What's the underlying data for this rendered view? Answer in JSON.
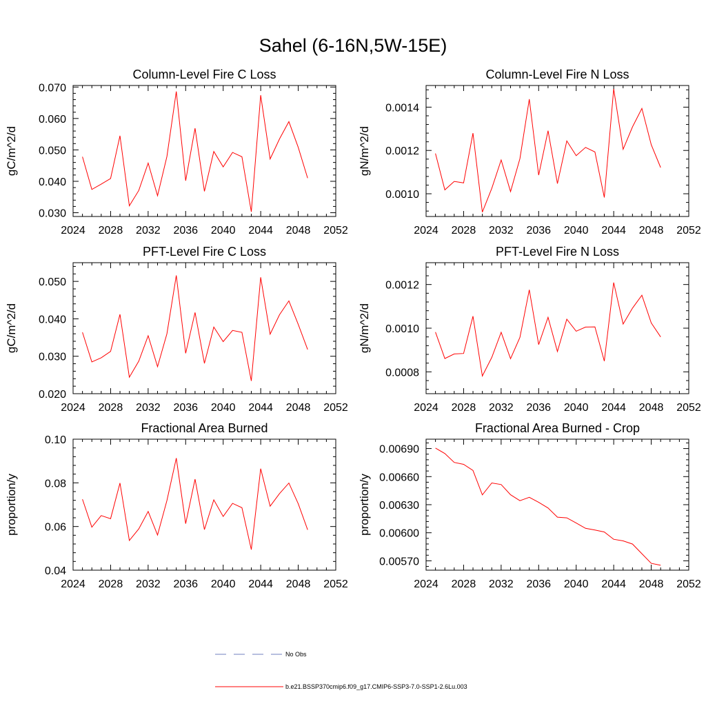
{
  "main_title": "Sahel (6-16N,5W-15E)",
  "series_color": "#ff0000",
  "obs_color": "#6f7fbf",
  "legend": {
    "obs_label": "No Obs",
    "model_label": "b.e21.BSSP370cmip6.f09_g17.CMIP6-SSP3-7.0-SSP1-2.6Lu.003"
  },
  "chart_data": [
    {
      "type": "line",
      "title": "Column-Level Fire C Loss",
      "ylabel": "gC/m^2/d",
      "xlim": [
        2024,
        2052
      ],
      "ylim": [
        0.0288,
        0.0705
      ],
      "xticks": [
        2024,
        2028,
        2032,
        2036,
        2040,
        2044,
        2048,
        2052
      ],
      "xtick_labels": [
        "2024",
        "2028",
        "2032",
        "2036",
        "2040",
        "2044",
        "2048",
        "2052"
      ],
      "yticks": [
        0.03,
        0.04,
        0.05,
        0.06,
        0.07
      ],
      "ytick_labels": [
        "0.030",
        "0.040",
        "0.050",
        "0.060",
        "0.070"
      ],
      "x": [
        2025,
        2026,
        2027,
        2028,
        2029,
        2030,
        2031,
        2032,
        2033,
        2034,
        2035,
        2036,
        2037,
        2038,
        2039,
        2040,
        2041,
        2042,
        2043,
        2044,
        2045,
        2046,
        2047,
        2048,
        2049
      ],
      "values": [
        0.0478,
        0.0374,
        0.0391,
        0.0409,
        0.0545,
        0.0322,
        0.0371,
        0.0458,
        0.0354,
        0.0479,
        0.0686,
        0.0402,
        0.0569,
        0.0368,
        0.0495,
        0.0446,
        0.0492,
        0.0478,
        0.0303,
        0.0674,
        0.0471,
        0.0535,
        0.059,
        0.0508,
        0.041
      ]
    },
    {
      "type": "line",
      "title": "Column-Level Fire N Loss",
      "ylabel": "gN/m^2/d",
      "xlim": [
        2024,
        2052
      ],
      "ylim": [
        0.000895,
        0.0015
      ],
      "xticks": [
        2024,
        2028,
        2032,
        2036,
        2040,
        2044,
        2048,
        2052
      ],
      "xtick_labels": [
        "2024",
        "2028",
        "2032",
        "2036",
        "2040",
        "2044",
        "2048",
        "2052"
      ],
      "yticks": [
        0.001,
        0.0012,
        0.0014
      ],
      "ytick_labels": [
        "0.0010",
        "0.0012",
        "0.0014"
      ],
      "x": [
        2025,
        2026,
        2027,
        2028,
        2029,
        2030,
        2031,
        2032,
        2033,
        2034,
        2035,
        2036,
        2037,
        2038,
        2039,
        2040,
        2041,
        2042,
        2043,
        2044,
        2045,
        2046,
        2047,
        2048,
        2049
      ],
      "values": [
        0.001186,
        0.001018,
        0.001057,
        0.00105,
        0.00128,
        0.000915,
        0.001025,
        0.001156,
        0.00101,
        0.001162,
        0.001437,
        0.001086,
        0.001291,
        0.001047,
        0.001244,
        0.001176,
        0.001214,
        0.001193,
        0.000983,
        0.001484,
        0.001205,
        0.001309,
        0.001394,
        0.001226,
        0.001121
      ]
    },
    {
      "type": "line",
      "title": "PFT-Level Fire C Loss",
      "ylabel": "gC/m^2/d",
      "xlim": [
        2024,
        2052
      ],
      "ylim": [
        0.02,
        0.055
      ],
      "xticks": [
        2024,
        2028,
        2032,
        2036,
        2040,
        2044,
        2048,
        2052
      ],
      "xtick_labels": [
        "2024",
        "2028",
        "2032",
        "2036",
        "2040",
        "2044",
        "2048",
        "2052"
      ],
      "yticks": [
        0.02,
        0.03,
        0.04,
        0.05
      ],
      "ytick_labels": [
        "0.020",
        "0.030",
        "0.040",
        "0.050"
      ],
      "x": [
        2025,
        2026,
        2027,
        2028,
        2029,
        2030,
        2031,
        2032,
        2033,
        2034,
        2035,
        2036,
        2037,
        2038,
        2039,
        2040,
        2041,
        2042,
        2043,
        2044,
        2045,
        2046,
        2047,
        2048,
        2049
      ],
      "values": [
        0.0364,
        0.0285,
        0.0296,
        0.0313,
        0.0412,
        0.0244,
        0.0287,
        0.0355,
        0.0272,
        0.036,
        0.0516,
        0.0308,
        0.0417,
        0.0281,
        0.0378,
        0.0339,
        0.0369,
        0.0364,
        0.0234,
        0.0511,
        0.0359,
        0.0411,
        0.0448,
        0.0385,
        0.0318
      ]
    },
    {
      "type": "line",
      "title": "PFT-Level Fire N Loss",
      "ylabel": "gN/m^2/d",
      "xlim": [
        2024,
        2052
      ],
      "ylim": [
        0.0007,
        0.0013
      ],
      "xticks": [
        2024,
        2028,
        2032,
        2036,
        2040,
        2044,
        2048,
        2052
      ],
      "xtick_labels": [
        "2024",
        "2028",
        "2032",
        "2036",
        "2040",
        "2044",
        "2048",
        "2052"
      ],
      "yticks": [
        0.0008,
        0.001,
        0.0012
      ],
      "ytick_labels": [
        "0.0008",
        "0.0010",
        "0.0012"
      ],
      "x": [
        2025,
        2026,
        2027,
        2028,
        2029,
        2030,
        2031,
        2032,
        2033,
        2034,
        2035,
        2036,
        2037,
        2038,
        2039,
        2040,
        2041,
        2042,
        2043,
        2044,
        2045,
        2046,
        2047,
        2048,
        2049
      ],
      "values": [
        0.000982,
        0.000861,
        0.000882,
        0.000884,
        0.001055,
        0.000781,
        0.000866,
        0.000981,
        0.00086,
        0.000958,
        0.001176,
        0.000925,
        0.00105,
        0.000893,
        0.001041,
        0.000986,
        0.001005,
        0.001006,
        0.000849,
        0.001209,
        0.001019,
        0.001092,
        0.001151,
        0.001024,
        0.00096
      ]
    },
    {
      "type": "line",
      "title": "Fractional Area Burned",
      "ylabel": "proportion/y",
      "xlim": [
        2024,
        2052
      ],
      "ylim": [
        0.04,
        0.1
      ],
      "xticks": [
        2024,
        2028,
        2032,
        2036,
        2040,
        2044,
        2048,
        2052
      ],
      "xtick_labels": [
        "2024",
        "2028",
        "2032",
        "2036",
        "2040",
        "2044",
        "2048",
        "2052"
      ],
      "yticks": [
        0.04,
        0.06,
        0.08,
        0.1
      ],
      "ytick_labels": [
        "0.04",
        "0.06",
        "0.08",
        "0.10"
      ],
      "x": [
        2025,
        2026,
        2027,
        2028,
        2029,
        2030,
        2031,
        2032,
        2033,
        2034,
        2035,
        2036,
        2037,
        2038,
        2039,
        2040,
        2041,
        2042,
        2043,
        2044,
        2045,
        2046,
        2047,
        2048,
        2049
      ],
      "values": [
        0.0725,
        0.0597,
        0.065,
        0.0636,
        0.0799,
        0.0536,
        0.0589,
        0.0669,
        0.0561,
        0.0719,
        0.0913,
        0.0613,
        0.0817,
        0.0586,
        0.0722,
        0.0646,
        0.0706,
        0.0686,
        0.0494,
        0.0865,
        0.0693,
        0.0751,
        0.0799,
        0.0704,
        0.0585
      ]
    },
    {
      "type": "line",
      "title": "Fractional Area Burned - Crop",
      "ylabel": "proportion/y",
      "xlim": [
        2024,
        2052
      ],
      "ylim": [
        0.0056,
        0.007
      ],
      "xticks": [
        2024,
        2028,
        2032,
        2036,
        2040,
        2044,
        2048,
        2052
      ],
      "xtick_labels": [
        "2024",
        "2028",
        "2032",
        "2036",
        "2040",
        "2044",
        "2048",
        "2052"
      ],
      "yticks": [
        0.0057,
        0.006,
        0.0063,
        0.0066,
        0.0069
      ],
      "ytick_labels": [
        "0.00570",
        "0.00600",
        "0.00630",
        "0.00660",
        "0.00690"
      ],
      "x": [
        2025,
        2026,
        2027,
        2028,
        2029,
        2030,
        2031,
        2032,
        2033,
        2034,
        2035,
        2036,
        2037,
        2038,
        2039,
        2040,
        2041,
        2042,
        2043,
        2044,
        2045,
        2046,
        2047,
        2048,
        2049
      ],
      "values": [
        0.006905,
        0.006847,
        0.006752,
        0.006731,
        0.006666,
        0.006405,
        0.006532,
        0.006515,
        0.006406,
        0.006343,
        0.006379,
        0.006325,
        0.006265,
        0.006167,
        0.006159,
        0.006104,
        0.006047,
        0.006029,
        0.006008,
        0.00593,
        0.005913,
        0.005879,
        0.005776,
        0.005673,
        0.005652
      ]
    }
  ]
}
